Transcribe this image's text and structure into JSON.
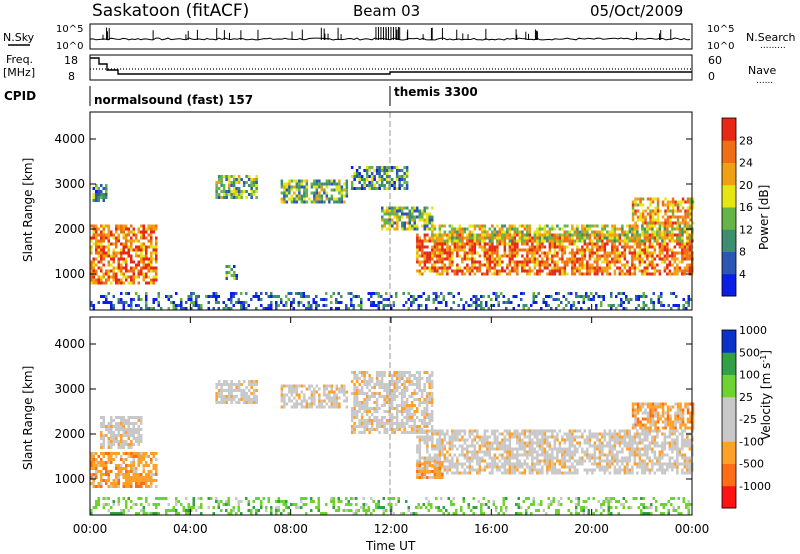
{
  "header": {
    "station": "Saskatoon (fitACF)",
    "beam": "Beam 03",
    "date": "05/Oct/2009"
  },
  "panels": {
    "nsky_label": "N.Sky",
    "nsearch_label": "N.Search",
    "nsearch_line": ".........",
    "freq_label": "Freq.",
    "freq_unit": "[MHz]",
    "nave_label": "Nave",
    "nave_line": "......",
    "cpid_label": "CPID",
    "cpid_left": "normalsound (fast) 157",
    "cpid_right": "themis 3300",
    "top_ticks_left": [
      "10^5",
      "10^0"
    ],
    "top_ticks_right": [
      "10^5",
      "10^0"
    ],
    "freq_ticks": [
      "18",
      "8"
    ],
    "nave_ticks": [
      "60",
      "0"
    ]
  },
  "colors": {
    "power": [
      "#0a1ee6",
      "#2b56b4",
      "#3c8e6e",
      "#66b446",
      "#e6e614",
      "#f0a014",
      "#f06e14",
      "#e62814"
    ],
    "velocity": [
      "#ff1414",
      "#ff6e14",
      "#ffa028",
      "#c8c8c8",
      "#c8c8c8",
      "#6ed232",
      "#32a046",
      "#0a32c8"
    ]
  },
  "chart_data": [
    {
      "type": "heatmap",
      "title": "",
      "xlabel": "Time UT",
      "ylabel": "Slant Range [km]",
      "x_ticks": [
        "00:00",
        "04:00",
        "08:00",
        "12:00",
        "16:00",
        "20:00",
        "00:00"
      ],
      "y_ticks": [
        "1000",
        "2000",
        "3000",
        "4000"
      ],
      "ylim": [
        200,
        4600
      ],
      "colorbar_label": "Power [dB]",
      "colorbar_ticks": [
        "4",
        "8",
        "12",
        "16",
        "20",
        "24",
        "28"
      ],
      "echo_regions": [
        {
          "t0": 0.0,
          "t1": 2.6,
          "r0": 800,
          "r1": 2100,
          "level": 6
        },
        {
          "t0": 0.1,
          "t1": 0.6,
          "r0": 2600,
          "r1": 3000,
          "level": 2
        },
        {
          "t0": 5.0,
          "t1": 6.6,
          "r0": 2700,
          "r1": 3200,
          "level": 3
        },
        {
          "t0": 5.4,
          "t1": 5.8,
          "r0": 900,
          "r1": 1200,
          "level": 2
        },
        {
          "t0": 7.6,
          "t1": 10.2,
          "r0": 2600,
          "r1": 3100,
          "level": 3
        },
        {
          "t0": 10.4,
          "t1": 12.6,
          "r0": 2900,
          "r1": 3400,
          "level": 2
        },
        {
          "t0": 11.6,
          "t1": 13.6,
          "r0": 2000,
          "r1": 2500,
          "level": 3
        },
        {
          "t0": 13.0,
          "t1": 24.0,
          "r0": 1000,
          "r1": 1900,
          "level": 6
        },
        {
          "t0": 13.6,
          "t1": 24.0,
          "r0": 1700,
          "r1": 2100,
          "level": 4
        },
        {
          "t0": 21.6,
          "t1": 24.0,
          "r0": 2100,
          "r1": 2700,
          "level": 5
        },
        {
          "t0": 0.0,
          "t1": 24.0,
          "r0": 200,
          "r1": 600,
          "level": 1
        }
      ]
    },
    {
      "type": "heatmap",
      "title": "",
      "xlabel": "Time UT",
      "ylabel": "Slant Range [km]",
      "x_ticks": [
        "00:00",
        "04:00",
        "08:00",
        "12:00",
        "16:00",
        "20:00",
        "00:00"
      ],
      "y_ticks": [
        "1000",
        "2000",
        "3000",
        "4000"
      ],
      "ylim": [
        200,
        4600
      ],
      "colorbar_label": "Velocity [m s^-1]",
      "colorbar_ticks": [
        "1000",
        "500",
        "100",
        "25",
        "-25",
        "-100",
        "-500",
        "-1000"
      ],
      "echo_regions": [
        {
          "t0": 0.0,
          "t1": 2.6,
          "r0": 800,
          "r1": 1600,
          "level": 2
        },
        {
          "t0": 0.4,
          "t1": 2.0,
          "r0": 1700,
          "r1": 2400,
          "level": 3
        },
        {
          "t0": 5.0,
          "t1": 6.6,
          "r0": 2700,
          "r1": 3200,
          "level": 3
        },
        {
          "t0": 7.6,
          "t1": 10.2,
          "r0": 2600,
          "r1": 3100,
          "level": 3
        },
        {
          "t0": 10.4,
          "t1": 13.6,
          "r0": 2000,
          "r1": 3400,
          "level": 3
        },
        {
          "t0": 13.0,
          "t1": 24.0,
          "r0": 1100,
          "r1": 2100,
          "level": 3
        },
        {
          "t0": 13.0,
          "t1": 14.0,
          "r0": 1000,
          "r1": 1400,
          "level": 2
        },
        {
          "t0": 21.6,
          "t1": 24.0,
          "r0": 2100,
          "r1": 2700,
          "level": 2
        },
        {
          "t0": 0.0,
          "t1": 24.0,
          "r0": 200,
          "r1": 600,
          "level": 5
        }
      ]
    }
  ]
}
